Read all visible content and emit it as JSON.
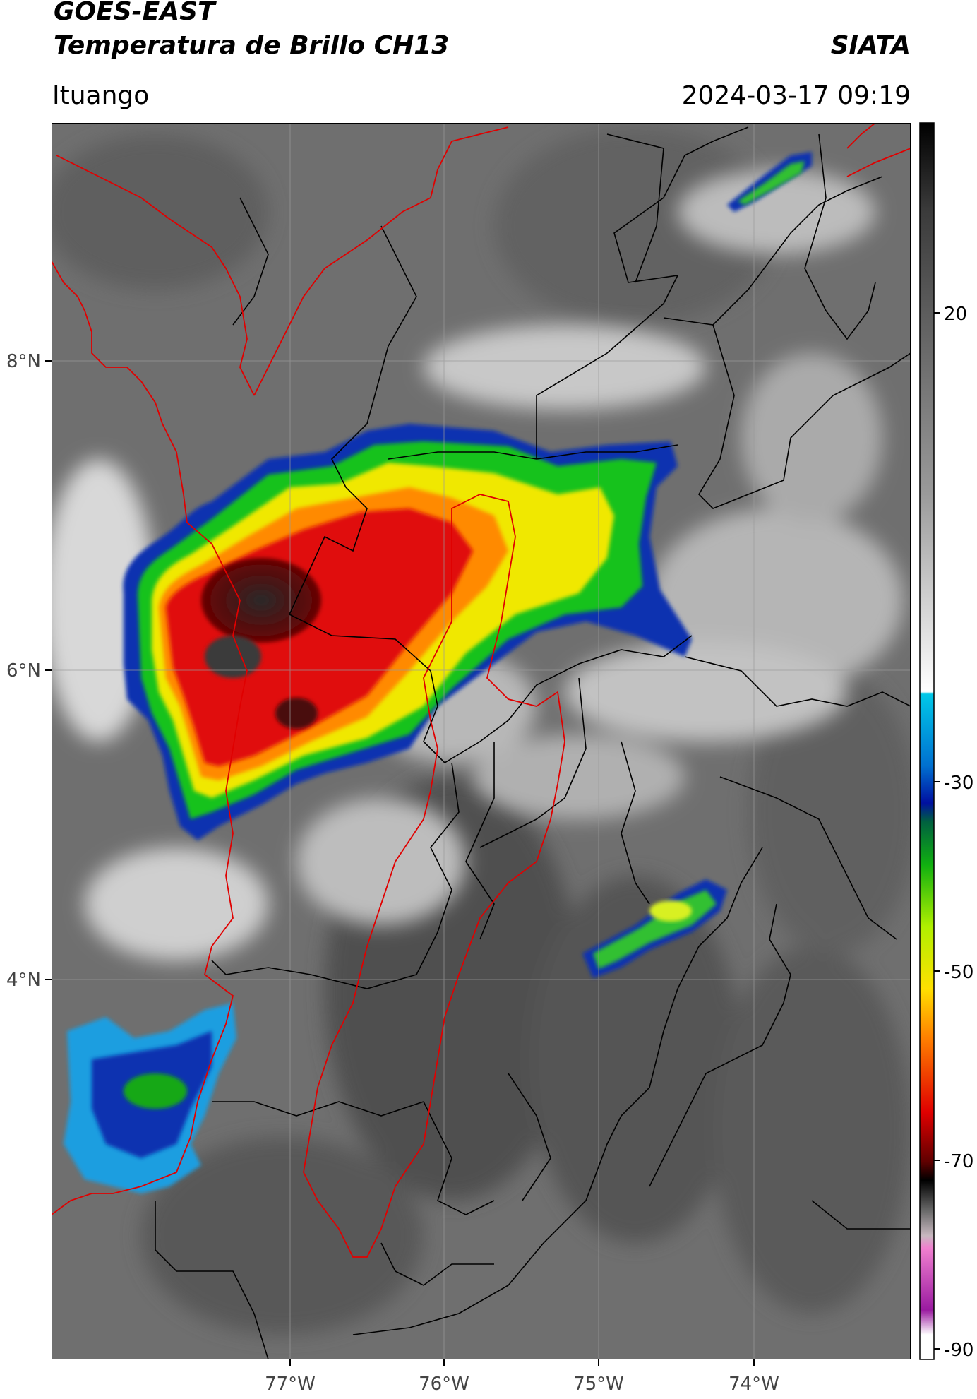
{
  "header": {
    "satellite": "GOES-EAST",
    "product": "Temperatura de Brillo CH13",
    "agency": "SIATA",
    "location": "Ituango",
    "datetime": "2024-03-17 09:19"
  },
  "map": {
    "lat_range": [
      2.8,
      9.8
    ],
    "lon_range": [
      -78.55,
      -73.05
    ],
    "lat_ticks": [
      {
        "value": 8,
        "label": "8°N"
      },
      {
        "value": 6,
        "label": "6°N"
      },
      {
        "value": 4,
        "label": "4°N"
      }
    ],
    "lon_ticks": [
      {
        "value": -77,
        "label": "77°W"
      },
      {
        "value": -76,
        "label": "76°W"
      },
      {
        "value": -75,
        "label": "75°W"
      },
      {
        "value": -74,
        "label": "74°W"
      }
    ],
    "colors": {
      "coastline": "#e00000",
      "admin_borders": "#000000",
      "gridlines": "#999999"
    }
  },
  "colorbar": {
    "range": [
      -90,
      40
    ],
    "ticks": [
      {
        "value": 20,
        "label": "20"
      },
      {
        "value": -30,
        "label": "-30"
      },
      {
        "value": -50,
        "label": "-50"
      },
      {
        "value": -70,
        "label": "-70"
      },
      {
        "value": -90,
        "label": "-90"
      }
    ]
  }
}
